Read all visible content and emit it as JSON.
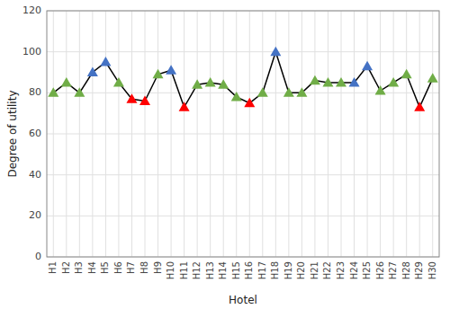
{
  "chart_data": {
    "type": "line",
    "xlabel": "Hotel",
    "ylabel": "Degree of utility",
    "categories": [
      "H1",
      "H2",
      "H3",
      "H4",
      "H5",
      "H6",
      "H7",
      "H8",
      "H9",
      "H10",
      "H11",
      "H12",
      "H13",
      "H14",
      "H15",
      "H16",
      "H17",
      "H18",
      "H19",
      "H20",
      "H21",
      "H22",
      "H23",
      "H24",
      "H25",
      "H26",
      "H27",
      "H28",
      "H29",
      "H30"
    ],
    "values": [
      80,
      85,
      80,
      90,
      95,
      85,
      77,
      76,
      89,
      91,
      73,
      84,
      85,
      84,
      78,
      75,
      80,
      100,
      80,
      80,
      86,
      85,
      85,
      85,
      93,
      81,
      85,
      89,
      73,
      87
    ],
    "color": "#000000",
    "colors": [
      "#70AD47",
      "#70AD47",
      "#70AD47",
      "#4472C4",
      "#4472C4",
      "#70AD47",
      "#FF0000",
      "#FF0000",
      "#70AD47",
      "#4472C4",
      "#FF0000",
      "#70AD47",
      "#70AD47",
      "#70AD47",
      "#70AD47",
      "#FF0000",
      "#70AD47",
      "#4472C4",
      "#70AD47",
      "#70AD47",
      "#70AD47",
      "#70AD47",
      "#70AD47",
      "#4472C4",
      "#4472C4",
      "#70AD47",
      "#70AD47",
      "#70AD47",
      "#FF0000",
      "#70AD47"
    ],
    "marker": "triangle",
    "ylim": [
      0,
      120
    ],
    "yticks": [
      0,
      20,
      40,
      60,
      80,
      100,
      120
    ],
    "grid": true
  }
}
